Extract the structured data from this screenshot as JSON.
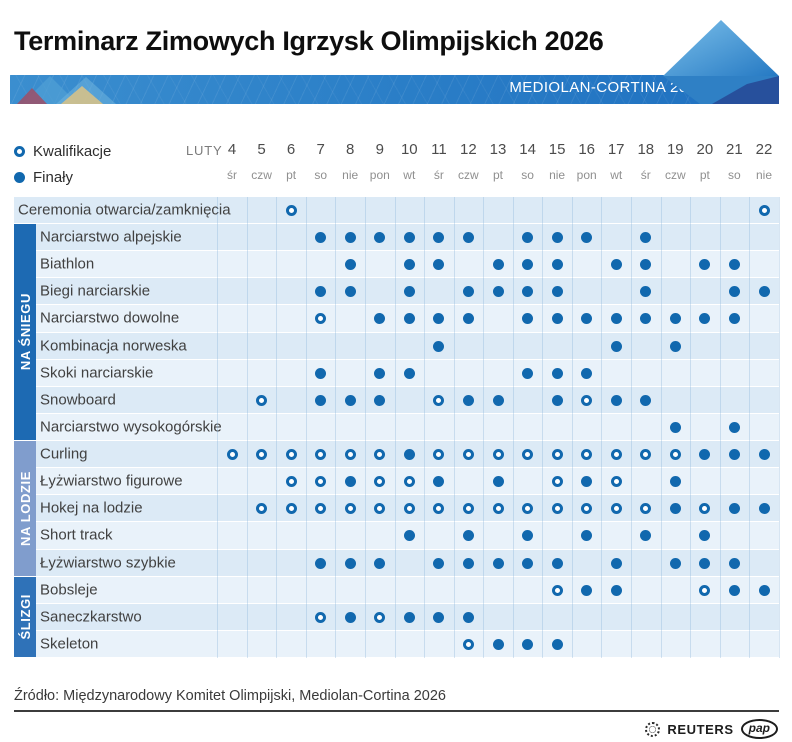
{
  "header": {
    "title": "Terminarz Zimowych Igrzysk Olimpijskich 2026",
    "banner_label": "MEDIOLAN-CORTINA 2026"
  },
  "legend": {
    "qualifications_label": "Kwalifikacje",
    "finals_label": "Finały",
    "month_label": "LUTY"
  },
  "footer": {
    "source": "Źródło: Międzynarodowy Komitet Olimpijski, Mediolan-Cortina 2026",
    "logo_reuters": "REUTERS",
    "logo_pap": "pap"
  },
  "colors": {
    "dot_blue": "#1168ae",
    "banner_blue": "#2c80c8",
    "category_snow": "#1d6ab3",
    "category_ice": "#809dcd",
    "category_slide": "#2f72b8",
    "row_stripe_dark": "#dceaf6",
    "row_stripe_light": "#e9f2fa"
  },
  "categories": [
    {
      "id": "snow",
      "label": "NA ŚNIEGU",
      "color": "#1d6ab3"
    },
    {
      "id": "ice",
      "label": "NA LODZIE",
      "color": "#809dcd"
    },
    {
      "id": "slide",
      "label": "ŚLIZGI",
      "color": "#2f72b8"
    }
  ],
  "chart_data": {
    "type": "heatmap",
    "title": "Terminarz Zimowych Igrzysk Olimpijskich 2026",
    "subtitle": "MEDIOLAN-CORTINA 2026",
    "x_axis_label": "LUTY",
    "legend": {
      "open_circle": "Kwalifikacje",
      "filled_circle": "Finały"
    },
    "columns": [
      {
        "date": "4",
        "dow": "śr"
      },
      {
        "date": "5",
        "dow": "czw"
      },
      {
        "date": "6",
        "dow": "pt"
      },
      {
        "date": "7",
        "dow": "so"
      },
      {
        "date": "8",
        "dow": "nie"
      },
      {
        "date": "9",
        "dow": "pon"
      },
      {
        "date": "10",
        "dow": "wt"
      },
      {
        "date": "11",
        "dow": "śr"
      },
      {
        "date": "12",
        "dow": "czw"
      },
      {
        "date": "13",
        "dow": "pt"
      },
      {
        "date": "14",
        "dow": "so"
      },
      {
        "date": "15",
        "dow": "nie"
      },
      {
        "date": "16",
        "dow": "pon"
      },
      {
        "date": "17",
        "dow": "wt"
      },
      {
        "date": "18",
        "dow": "śr"
      },
      {
        "date": "19",
        "dow": "czw"
      },
      {
        "date": "20",
        "dow": "pt"
      },
      {
        "date": "21",
        "dow": "so"
      },
      {
        "date": "22",
        "dow": "nie"
      }
    ],
    "rows": [
      {
        "label": "Ceremonia otwarcia/zamknięcia",
        "category": null,
        "qualifications": [
          6,
          22
        ],
        "finals": []
      },
      {
        "label": "Narciarstwo alpejskie",
        "category": "snow",
        "qualifications": [],
        "finals": [
          7,
          8,
          9,
          10,
          11,
          12,
          14,
          15,
          16,
          18
        ]
      },
      {
        "label": "Biathlon",
        "category": "snow",
        "qualifications": [],
        "finals": [
          8,
          10,
          11,
          13,
          14,
          15,
          17,
          18,
          20,
          21
        ]
      },
      {
        "label": "Biegi narciarskie",
        "category": "snow",
        "qualifications": [],
        "finals": [
          7,
          8,
          10,
          12,
          13,
          14,
          15,
          18,
          21,
          22
        ]
      },
      {
        "label": "Narciarstwo dowolne",
        "category": "snow",
        "qualifications": [
          7
        ],
        "finals": [
          9,
          10,
          11,
          12,
          14,
          15,
          16,
          17,
          18,
          19,
          20,
          21
        ]
      },
      {
        "label": "Kombinacja norweska",
        "category": "snow",
        "qualifications": [],
        "finals": [
          11,
          17,
          19
        ]
      },
      {
        "label": "Skoki narciarskie",
        "category": "snow",
        "qualifications": [],
        "finals": [
          7,
          9,
          10,
          14,
          15,
          16
        ]
      },
      {
        "label": "Snowboard",
        "category": "snow",
        "qualifications": [
          5,
          11,
          16
        ],
        "finals": [
          7,
          8,
          9,
          12,
          13,
          15,
          17,
          18
        ]
      },
      {
        "label": "Narciarstwo wysokogórskie",
        "category": "snow",
        "qualifications": [],
        "finals": [
          19,
          21
        ]
      },
      {
        "label": "Curling",
        "category": "ice",
        "qualifications": [
          4,
          5,
          6,
          7,
          8,
          9,
          11,
          12,
          13,
          14,
          15,
          16,
          17,
          18,
          19
        ],
        "finals": [
          10,
          20,
          21,
          22
        ]
      },
      {
        "label": "Łyżwiarstwo figurowe",
        "category": "ice",
        "qualifications": [
          6,
          7,
          9,
          10,
          15,
          17
        ],
        "finals": [
          8,
          11,
          13,
          16,
          19
        ]
      },
      {
        "label": "Hokej na lodzie",
        "category": "ice",
        "qualifications": [
          5,
          6,
          7,
          8,
          9,
          10,
          11,
          12,
          13,
          14,
          15,
          16,
          17,
          18,
          20
        ],
        "finals": [
          19,
          21,
          22
        ]
      },
      {
        "label": "Short track",
        "category": "ice",
        "qualifications": [],
        "finals": [
          10,
          12,
          14,
          16,
          18,
          20
        ]
      },
      {
        "label": "Łyżwiarstwo szybkie",
        "category": "ice",
        "qualifications": [],
        "finals": [
          7,
          8,
          9,
          11,
          12,
          13,
          14,
          15,
          17,
          19,
          20,
          21
        ]
      },
      {
        "label": "Bobsleje",
        "category": "slide",
        "qualifications": [
          15,
          20
        ],
        "finals": [
          16,
          17,
          21,
          22
        ]
      },
      {
        "label": "Saneczkarstwo",
        "category": "slide",
        "qualifications": [
          7,
          9
        ],
        "finals": [
          8,
          10,
          11,
          12
        ]
      },
      {
        "label": "Skeleton",
        "category": "slide",
        "qualifications": [
          12
        ],
        "finals": [
          13,
          14,
          15
        ]
      }
    ]
  }
}
